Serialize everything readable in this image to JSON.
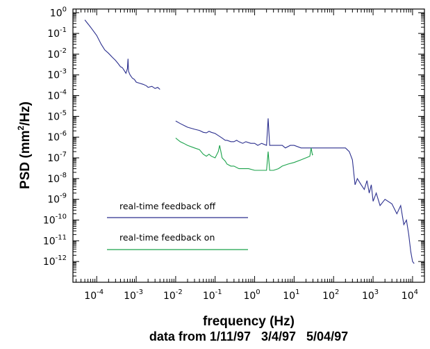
{
  "chart_data": {
    "type": "line",
    "title": "",
    "xlabel": "frequency (Hz)",
    "xsubtitle": "data from 1/11/97   3/4/97   5/04/97",
    "ylabel": {
      "prefix": "PSD (mm",
      "sup": "2",
      "suffix": "/Hz)"
    },
    "xscale": "log",
    "yscale": "log",
    "xlim": [
      2.5e-05,
      20000
    ],
    "ylim": [
      1e-13,
      1.5
    ],
    "x_ticks": [
      {
        "base": "10",
        "exp": "-4",
        "value": 0.0001
      },
      {
        "base": "10",
        "exp": "-3",
        "value": 0.001
      },
      {
        "base": "10",
        "exp": "-2",
        "value": 0.01
      },
      {
        "base": "10",
        "exp": "-1",
        "value": 0.1
      },
      {
        "base": "10",
        "exp": "0",
        "value": 1
      },
      {
        "base": "10",
        "exp": "1",
        "value": 10
      },
      {
        "base": "10",
        "exp": "2",
        "value": 100
      },
      {
        "base": "10",
        "exp": "3",
        "value": 1000
      },
      {
        "base": "10",
        "exp": "4",
        "value": 10000
      }
    ],
    "y_ticks": [
      {
        "base": "10",
        "exp": "0",
        "value": 1
      },
      {
        "base": "10",
        "exp": "-1",
        "value": 0.1
      },
      {
        "base": "10",
        "exp": "-2",
        "value": 0.01
      },
      {
        "base": "10",
        "exp": "-3",
        "value": 0.001
      },
      {
        "base": "10",
        "exp": "-4",
        "value": 0.0001
      },
      {
        "base": "10",
        "exp": "-5",
        "value": 1e-05
      },
      {
        "base": "10",
        "exp": "-6",
        "value": 1e-06
      },
      {
        "base": "10",
        "exp": "-7",
        "value": 1e-07
      },
      {
        "base": "10",
        "exp": "-8",
        "value": 1e-08
      },
      {
        "base": "10",
        "exp": "-9",
        "value": 1e-09
      },
      {
        "base": "10",
        "exp": "-10",
        "value": 1e-10
      },
      {
        "base": "10",
        "exp": "-11",
        "value": 1e-11
      },
      {
        "base": "10",
        "exp": "-12",
        "value": 1e-12
      }
    ],
    "legend_placement": "lower-left",
    "series": [
      {
        "name": "real-time feedback off",
        "color": "#2b2f8e",
        "segments": [
          [
            [
              5e-05,
              0.45
            ],
            [
              7e-05,
              0.2
            ],
            [
              0.0001,
              0.08
            ],
            [
              0.00013,
              0.03
            ],
            [
              0.00016,
              0.016
            ],
            [
              0.0002,
              0.011
            ],
            [
              0.00025,
              0.007
            ],
            [
              0.0003,
              0.005
            ],
            [
              0.00035,
              0.0035
            ],
            [
              0.0004,
              0.0025
            ],
            [
              0.00045,
              0.0022
            ],
            [
              0.0005,
              0.0016
            ],
            [
              0.00055,
              0.0012
            ],
            [
              0.0006,
              0.002
            ],
            [
              0.00062,
              0.006
            ],
            [
              0.00064,
              0.0015
            ],
            [
              0.0007,
              0.001
            ],
            [
              0.0008,
              0.0007
            ],
            [
              0.0009,
              0.0006
            ],
            [
              0.001,
              0.00045
            ],
            [
              0.0012,
              0.0004
            ],
            [
              0.0015,
              0.00035
            ],
            [
              0.0018,
              0.0003
            ],
            [
              0.002,
              0.00025
            ],
            [
              0.0025,
              0.00028
            ],
            [
              0.003,
              0.00022
            ],
            [
              0.0035,
              0.00025
            ],
            [
              0.004,
              0.0002
            ]
          ],
          [
            [
              0.01,
              6e-06
            ],
            [
              0.013,
              4.5e-06
            ],
            [
              0.017,
              3.5e-06
            ],
            [
              0.02,
              3e-06
            ],
            [
              0.03,
              2.4e-06
            ],
            [
              0.04,
              2.1e-06
            ],
            [
              0.05,
              1.7e-06
            ],
            [
              0.06,
              1.6e-06
            ],
            [
              0.07,
              1.9e-06
            ],
            [
              0.08,
              1.7e-06
            ],
            [
              0.1,
              1.5e-06
            ],
            [
              0.12,
              1.2e-06
            ],
            [
              0.15,
              9e-07
            ],
            [
              0.18,
              7e-07
            ],
            [
              0.2,
              7e-07
            ],
            [
              0.25,
              6e-07
            ],
            [
              0.3,
              6e-07
            ],
            [
              0.35,
              7e-07
            ],
            [
              0.4,
              6e-07
            ],
            [
              0.5,
              5e-07
            ],
            [
              0.6,
              6e-07
            ],
            [
              0.8,
              5e-07
            ],
            [
              1,
              5e-07
            ],
            [
              1.2,
              4e-07
            ],
            [
              1.5,
              5e-07
            ],
            [
              2,
              4e-07
            ],
            [
              2.2,
              8e-06
            ],
            [
              2.4,
              4e-07
            ],
            [
              3,
              4e-07
            ],
            [
              4,
              4e-07
            ],
            [
              5,
              4e-07
            ],
            [
              6,
              3e-07
            ],
            [
              8,
              4e-07
            ],
            [
              10,
              4e-07
            ],
            [
              15,
              3e-07
            ],
            [
              20,
              3e-07
            ],
            [
              30,
              3e-07
            ],
            [
              50,
              3e-07
            ],
            [
              80,
              3e-07
            ],
            [
              100,
              3e-07
            ],
            [
              150,
              3e-07
            ],
            [
              200,
              3e-07
            ],
            [
              250,
              2e-07
            ],
            [
              300,
              8e-08
            ],
            [
              350,
              5e-09
            ],
            [
              400,
              1e-08
            ],
            [
              500,
              5e-09
            ],
            [
              600,
              3e-09
            ],
            [
              700,
              8e-09
            ],
            [
              800,
              2e-09
            ],
            [
              900,
              5e-09
            ],
            [
              1000,
              8e-10
            ],
            [
              1200,
              2e-09
            ],
            [
              1500,
              5e-10
            ],
            [
              2000,
              1e-09
            ],
            [
              3000,
              6e-10
            ],
            [
              4000,
              2e-10
            ],
            [
              5000,
              5e-10
            ],
            [
              6000,
              6e-11
            ],
            [
              7000,
              1e-10
            ],
            [
              8000,
              2e-11
            ],
            [
              9000,
              3e-12
            ],
            [
              10000,
              1e-12
            ],
            [
              11000,
              8e-13
            ]
          ]
        ]
      },
      {
        "name": "real-time feedback on",
        "color": "#1aa24a",
        "segments": [
          [
            [
              0.01,
              9e-07
            ],
            [
              0.013,
              6e-07
            ],
            [
              0.016,
              5e-07
            ],
            [
              0.02,
              4e-07
            ],
            [
              0.03,
              3e-07
            ],
            [
              0.04,
              2.5e-07
            ],
            [
              0.05,
              1.5e-07
            ],
            [
              0.06,
              1.2e-07
            ],
            [
              0.07,
              1.5e-07
            ],
            [
              0.08,
              1.2e-07
            ],
            [
              0.1,
              1e-07
            ],
            [
              0.12,
              2e-07
            ],
            [
              0.13,
              4e-07
            ],
            [
              0.14,
              2e-07
            ],
            [
              0.15,
              1e-07
            ],
            [
              0.18,
              7e-08
            ],
            [
              0.2,
              5e-08
            ],
            [
              0.25,
              4e-08
            ],
            [
              0.3,
              4e-08
            ],
            [
              0.4,
              3e-08
            ],
            [
              0.5,
              3e-08
            ],
            [
              0.7,
              3e-08
            ],
            [
              1,
              2.5e-08
            ],
            [
              1.5,
              2.5e-08
            ],
            [
              2,
              2.5e-08
            ],
            [
              2.2,
              2e-07
            ],
            [
              2.4,
              2.5e-08
            ],
            [
              3,
              2.5e-08
            ],
            [
              4,
              3e-08
            ],
            [
              5,
              4e-08
            ],
            [
              7,
              5e-08
            ],
            [
              10,
              6e-08
            ],
            [
              15,
              8e-08
            ],
            [
              20,
              1e-07
            ],
            [
              25,
              1.2e-07
            ],
            [
              27,
              3e-07
            ],
            [
              29,
              1.4e-07
            ],
            [
              30,
              1.5e-07
            ]
          ]
        ]
      }
    ]
  }
}
